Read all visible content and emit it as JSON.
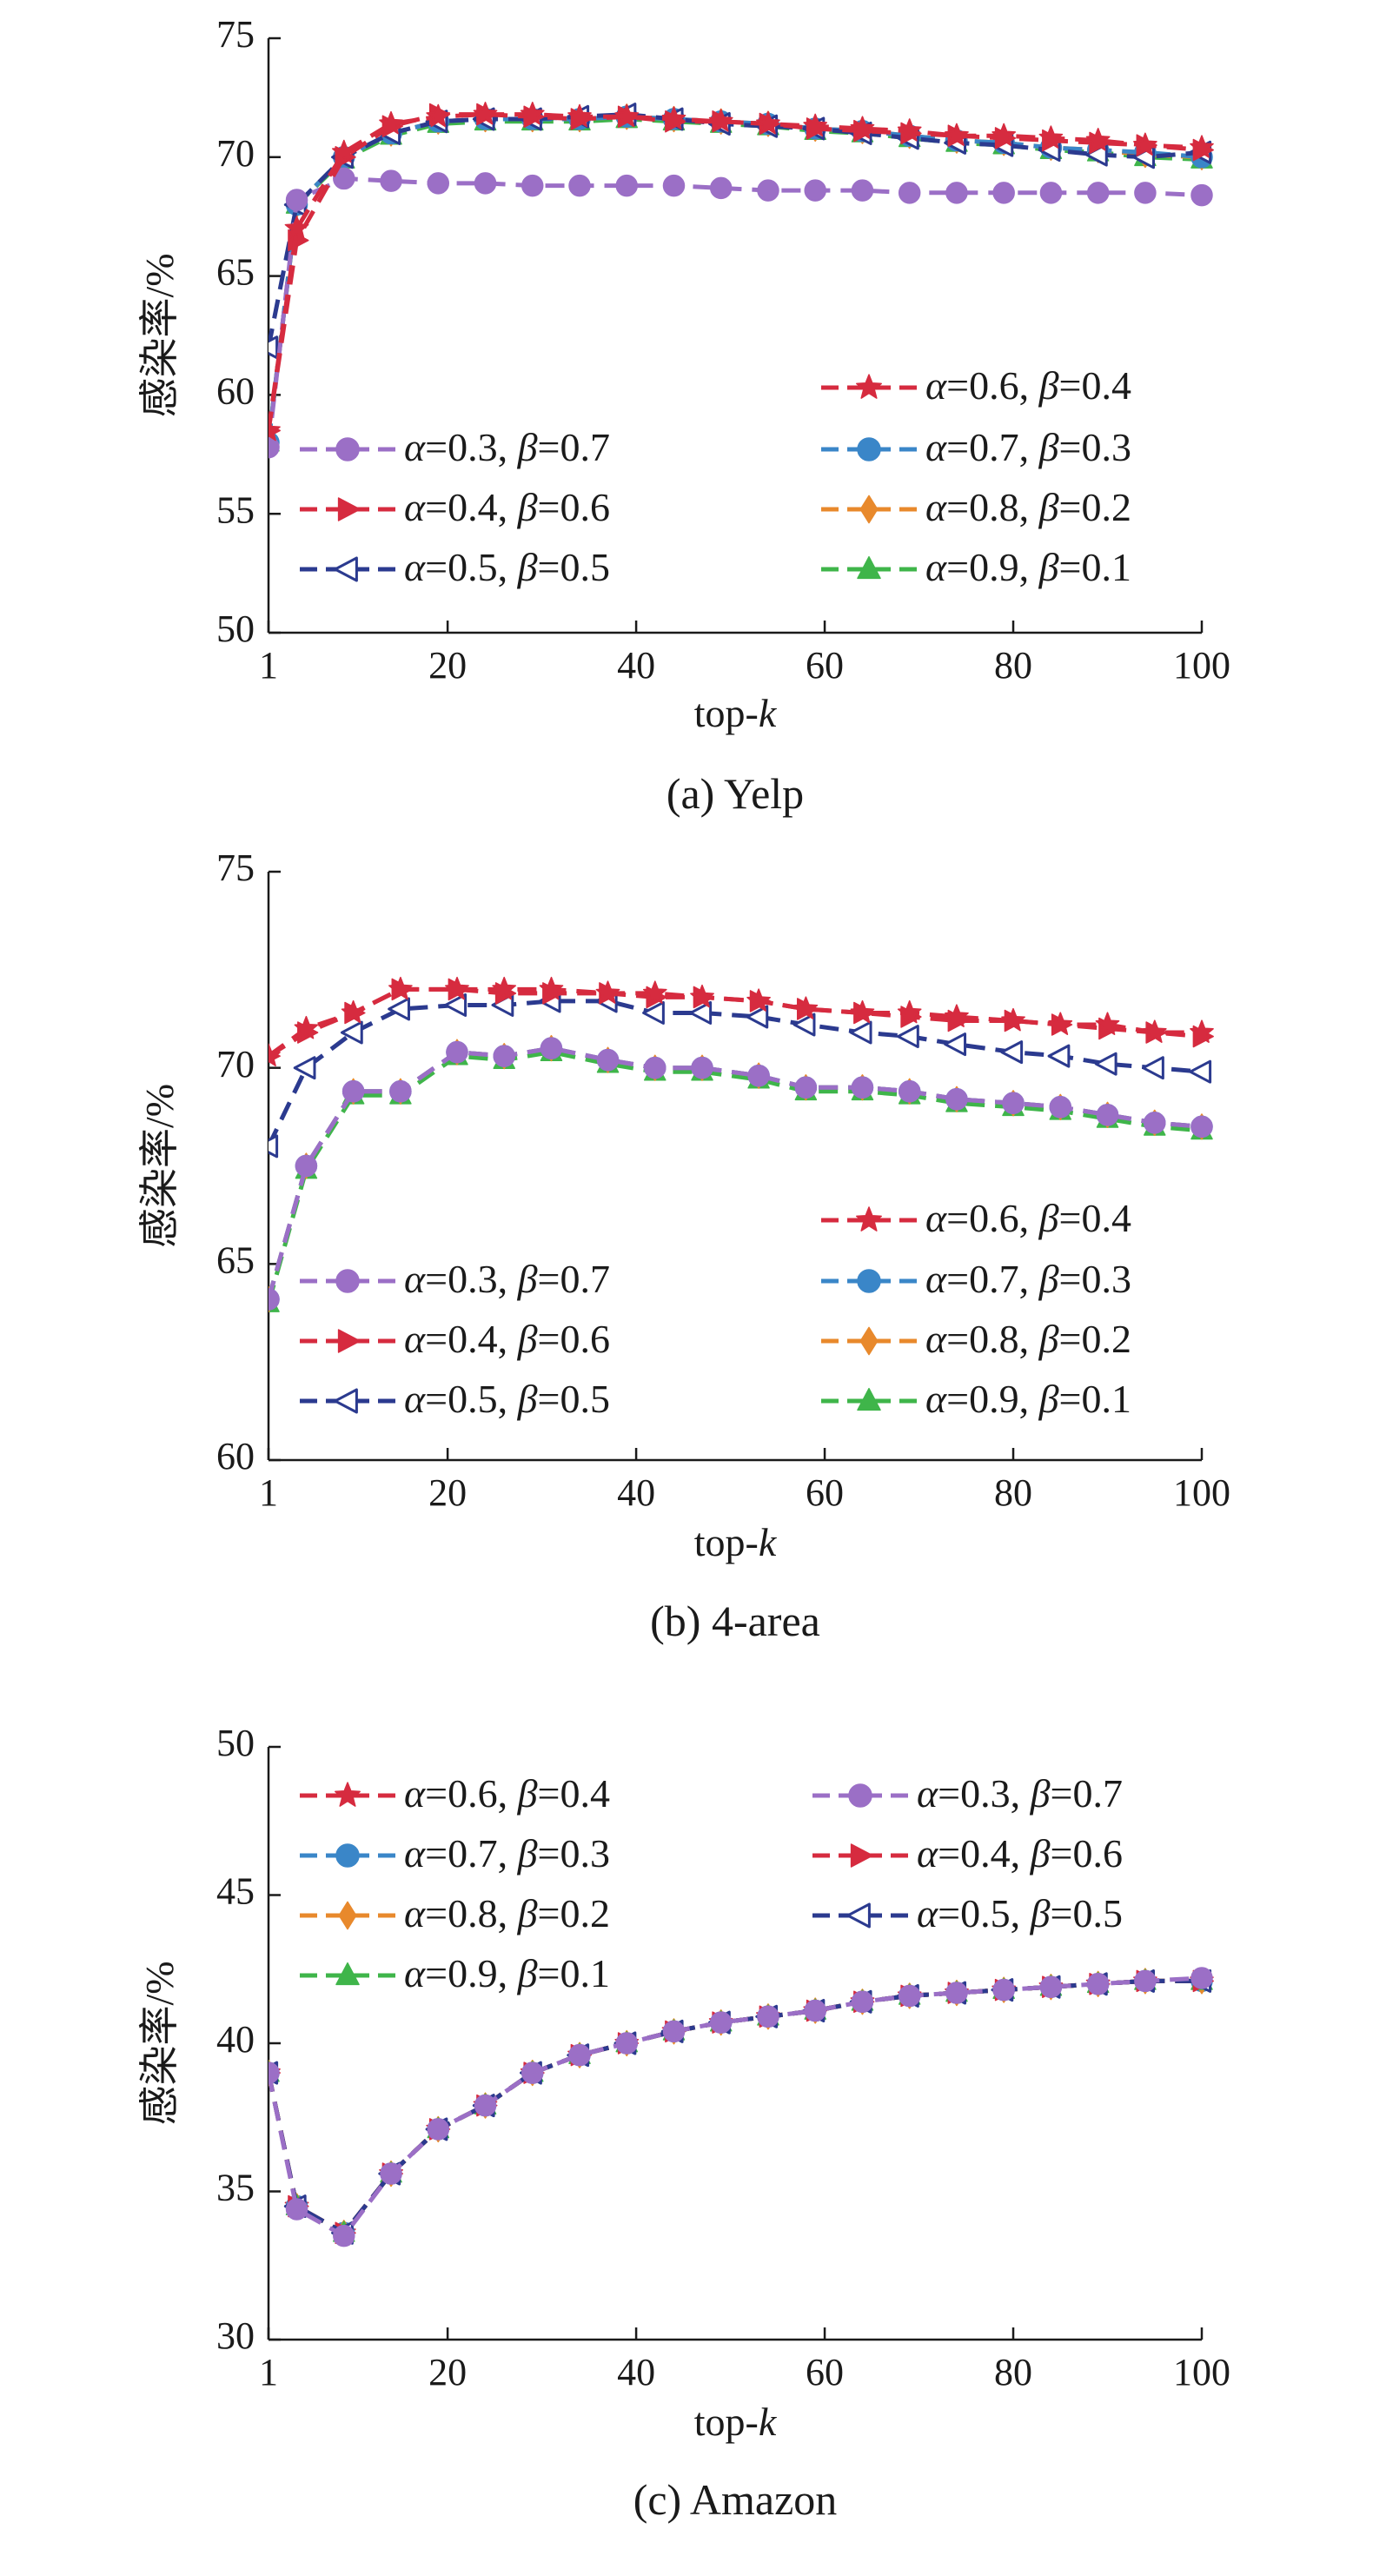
{
  "chart_data": [
    {
      "type": "line",
      "caption": "(a) Yelp",
      "xlabel": "top-k",
      "ylabel": "感染率/%",
      "xlim": [
        1,
        100
      ],
      "ylim": [
        50,
        75
      ],
      "xticks": [
        "1",
        "20",
        "40",
        "60",
        "80",
        "100"
      ],
      "yticks": [
        "50",
        "55",
        "60",
        "65",
        "70",
        "75"
      ],
      "legend": [
        {
          "key": "s3",
          "label": "α=0.3, β=0.7"
        },
        {
          "key": "s4",
          "label": "α=0.4, β=0.6"
        },
        {
          "key": "s5",
          "label": "α=0.5, β=0.5"
        },
        {
          "key": "s6",
          "label": "α=0.6, β=0.4"
        },
        {
          "key": "s7",
          "label": "α=0.7, β=0.3"
        },
        {
          "key": "s8",
          "label": "α=0.8, β=0.2"
        },
        {
          "key": "s9",
          "label": "α=0.9, β=0.1"
        }
      ],
      "x": [
        1,
        4,
        9,
        14,
        19,
        24,
        29,
        34,
        39,
        44,
        49,
        54,
        59,
        64,
        69,
        74,
        79,
        84,
        89,
        94,
        100
      ],
      "series": [
        {
          "key": "s9",
          "name": "α=0.9, β=0.1",
          "values": [
            58.0,
            68.0,
            69.9,
            70.9,
            71.4,
            71.5,
            71.5,
            71.5,
            71.6,
            71.5,
            71.4,
            71.3,
            71.1,
            71.0,
            70.8,
            70.6,
            70.5,
            70.3,
            70.2,
            70.0,
            69.9
          ]
        },
        {
          "key": "s8",
          "name": "α=0.8, β=0.2",
          "values": [
            58.0,
            68.0,
            70.0,
            71.0,
            71.5,
            71.6,
            71.6,
            71.6,
            71.7,
            71.6,
            71.5,
            71.4,
            71.2,
            71.1,
            70.9,
            70.7,
            70.6,
            70.4,
            70.3,
            70.1,
            70.0
          ]
        },
        {
          "key": "s7",
          "name": "α=0.7, β=0.3",
          "values": [
            58.0,
            68.0,
            70.0,
            71.0,
            71.5,
            71.6,
            71.6,
            71.6,
            71.7,
            71.6,
            71.5,
            71.4,
            71.2,
            71.1,
            70.9,
            70.7,
            70.6,
            70.4,
            70.3,
            70.2,
            70.0
          ]
        },
        {
          "key": "s5",
          "name": "α=0.5, β=0.5",
          "values": [
            62.0,
            68.0,
            70.0,
            71.0,
            71.5,
            71.6,
            71.6,
            71.7,
            71.8,
            71.6,
            71.4,
            71.3,
            71.2,
            71.0,
            70.8,
            70.6,
            70.5,
            70.3,
            70.1,
            70.0,
            70.2
          ]
        },
        {
          "key": "s3",
          "name": "α=0.3, β=0.7",
          "values": [
            57.8,
            68.2,
            69.1,
            69.0,
            68.9,
            68.9,
            68.8,
            68.8,
            68.8,
            68.8,
            68.7,
            68.6,
            68.6,
            68.6,
            68.5,
            68.5,
            68.5,
            68.5,
            68.5,
            68.5,
            68.4
          ]
        },
        {
          "key": "s4",
          "name": "α=0.4, β=0.6",
          "values": [
            58.5,
            66.5,
            70.0,
            71.3,
            71.8,
            71.8,
            71.7,
            71.6,
            71.7,
            71.5,
            71.5,
            71.4,
            71.2,
            71.1,
            71.0,
            70.9,
            70.8,
            70.7,
            70.6,
            70.5,
            70.3
          ]
        },
        {
          "key": "s6",
          "name": "α=0.6, β=0.4",
          "values": [
            58.5,
            67.0,
            70.2,
            71.4,
            71.7,
            71.8,
            71.8,
            71.7,
            71.7,
            71.6,
            71.5,
            71.4,
            71.3,
            71.2,
            71.1,
            70.9,
            70.9,
            70.8,
            70.7,
            70.5,
            70.4
          ]
        }
      ]
    },
    {
      "type": "line",
      "caption": "(b) 4-area",
      "xlabel": "top-k",
      "ylabel": "感染率/%",
      "xlim": [
        1,
        100
      ],
      "ylim": [
        60,
        75
      ],
      "xticks": [
        "1",
        "20",
        "40",
        "60",
        "80",
        "100"
      ],
      "yticks": [
        "60",
        "65",
        "70",
        "75"
      ],
      "legend": [
        {
          "key": "s3",
          "label": "α=0.3, β=0.7"
        },
        {
          "key": "s4",
          "label": "α=0.4, β=0.6"
        },
        {
          "key": "s5",
          "label": "α=0.5, β=0.5"
        },
        {
          "key": "s6",
          "label": "α=0.6, β=0.4"
        },
        {
          "key": "s7",
          "label": "α=0.7, β=0.3"
        },
        {
          "key": "s8",
          "label": "α=0.8, β=0.2"
        },
        {
          "key": "s9",
          "label": "α=0.9, β=0.1"
        }
      ],
      "x": [
        1,
        5,
        10,
        15,
        21,
        26,
        31,
        37,
        42,
        47,
        53,
        58,
        64,
        69,
        74,
        80,
        85,
        90,
        95,
        100
      ],
      "series": [
        {
          "key": "s9",
          "name": "α=0.9, β=0.1",
          "values": [
            64.0,
            67.4,
            69.3,
            69.3,
            70.3,
            70.2,
            70.4,
            70.1,
            69.9,
            69.9,
            69.7,
            69.4,
            69.4,
            69.3,
            69.1,
            69.0,
            68.9,
            68.7,
            68.5,
            68.4
          ]
        },
        {
          "key": "s8",
          "name": "α=0.8, β=0.2",
          "values": [
            64.1,
            67.5,
            69.4,
            69.4,
            70.4,
            70.3,
            70.5,
            70.2,
            70.0,
            70.0,
            69.8,
            69.5,
            69.5,
            69.4,
            69.2,
            69.1,
            69.0,
            68.8,
            68.6,
            68.5
          ]
        },
        {
          "key": "s7",
          "name": "α=0.7, β=0.3",
          "values": [
            64.1,
            67.5,
            69.4,
            69.4,
            70.4,
            70.3,
            70.5,
            70.2,
            70.0,
            70.0,
            69.8,
            69.5,
            69.5,
            69.4,
            69.2,
            69.1,
            69.0,
            68.8,
            68.6,
            68.5
          ]
        },
        {
          "key": "s3",
          "name": "α=0.3, β=0.7",
          "values": [
            64.1,
            67.5,
            69.4,
            69.4,
            70.4,
            70.3,
            70.5,
            70.2,
            70.0,
            70.0,
            69.8,
            69.5,
            69.5,
            69.4,
            69.2,
            69.1,
            69.0,
            68.8,
            68.6,
            68.5
          ]
        },
        {
          "key": "s5",
          "name": "α=0.5, β=0.5",
          "values": [
            68.0,
            70.0,
            70.9,
            71.5,
            71.6,
            71.6,
            71.7,
            71.7,
            71.4,
            71.4,
            71.3,
            71.1,
            70.9,
            70.8,
            70.6,
            70.4,
            70.3,
            70.1,
            70.0,
            69.9
          ]
        },
        {
          "key": "s4",
          "name": "α=0.4, β=0.6",
          "values": [
            70.3,
            70.9,
            71.4,
            72.0,
            72.0,
            71.9,
            71.9,
            71.9,
            71.8,
            71.8,
            71.7,
            71.5,
            71.4,
            71.3,
            71.2,
            71.2,
            71.1,
            71.0,
            70.9,
            70.8
          ]
        },
        {
          "key": "s6",
          "name": "α=0.6, β=0.4",
          "values": [
            70.3,
            71.0,
            71.4,
            72.0,
            72.0,
            72.0,
            72.0,
            71.9,
            71.9,
            71.8,
            71.7,
            71.5,
            71.4,
            71.4,
            71.3,
            71.2,
            71.1,
            71.1,
            70.9,
            70.9
          ]
        }
      ]
    },
    {
      "type": "line",
      "caption": "(c) Amazon",
      "xlabel": "top-k",
      "ylabel": "感染率/%",
      "xlim": [
        1,
        100
      ],
      "ylim": [
        30,
        50
      ],
      "xticks": [
        "1",
        "20",
        "40",
        "60",
        "80",
        "100"
      ],
      "yticks": [
        "30",
        "35",
        "40",
        "45",
        "50"
      ],
      "legend": [
        {
          "key": "s6",
          "label": "α=0.6, β=0.4"
        },
        {
          "key": "s7",
          "label": "α=0.7, β=0.3"
        },
        {
          "key": "s8",
          "label": "α=0.8, β=0.2"
        },
        {
          "key": "s9",
          "label": "α=0.9, β=0.1"
        },
        {
          "key": "s3",
          "label": "α=0.3, β=0.7"
        },
        {
          "key": "s4",
          "label": "α=0.4, β=0.6"
        },
        {
          "key": "s5",
          "label": "α=0.5, β=0.5"
        }
      ],
      "x": [
        1,
        4,
        9,
        14,
        19,
        24,
        29,
        34,
        39,
        44,
        49,
        54,
        59,
        64,
        69,
        74,
        79,
        84,
        89,
        94,
        100
      ],
      "series": [
        {
          "key": "s6",
          "name": "α=0.6, β=0.4",
          "values": [
            39.0,
            34.5,
            33.6,
            35.6,
            37.1,
            37.9,
            39.0,
            39.6,
            40.0,
            40.4,
            40.7,
            40.9,
            41.1,
            41.4,
            41.6,
            41.7,
            41.8,
            41.9,
            42.0,
            42.1,
            42.1
          ]
        },
        {
          "key": "s7",
          "name": "α=0.7, β=0.3",
          "values": [
            39.0,
            34.5,
            33.6,
            35.6,
            37.1,
            37.9,
            39.0,
            39.6,
            40.0,
            40.4,
            40.7,
            40.9,
            41.1,
            41.4,
            41.6,
            41.7,
            41.8,
            41.9,
            42.0,
            42.1,
            42.1
          ]
        },
        {
          "key": "s8",
          "name": "α=0.8, β=0.2",
          "values": [
            39.0,
            34.5,
            33.6,
            35.6,
            37.1,
            37.9,
            39.0,
            39.6,
            40.0,
            40.4,
            40.7,
            40.9,
            41.1,
            41.4,
            41.6,
            41.7,
            41.8,
            41.9,
            42.0,
            42.1,
            42.1
          ]
        },
        {
          "key": "s9",
          "name": "α=0.9, β=0.1",
          "values": [
            39.0,
            34.5,
            33.6,
            35.6,
            37.1,
            37.9,
            39.0,
            39.6,
            40.0,
            40.4,
            40.7,
            40.9,
            41.1,
            41.4,
            41.6,
            41.7,
            41.8,
            41.9,
            42.0,
            42.1,
            42.1
          ]
        },
        {
          "key": "s4",
          "name": "α=0.4, β=0.6",
          "values": [
            39.0,
            34.5,
            33.6,
            35.6,
            37.1,
            37.9,
            39.0,
            39.6,
            40.0,
            40.4,
            40.7,
            40.9,
            41.1,
            41.4,
            41.6,
            41.7,
            41.8,
            41.9,
            42.0,
            42.1,
            42.1
          ]
        },
        {
          "key": "s5",
          "name": "α=0.5, β=0.5",
          "values": [
            39.0,
            34.5,
            33.6,
            35.6,
            37.1,
            37.9,
            39.0,
            39.6,
            40.0,
            40.4,
            40.7,
            40.9,
            41.1,
            41.4,
            41.6,
            41.7,
            41.8,
            41.9,
            42.0,
            42.1,
            42.1
          ]
        },
        {
          "key": "s3",
          "name": "α=0.3, β=0.7",
          "values": [
            39.0,
            34.4,
            33.5,
            35.6,
            37.1,
            37.9,
            39.0,
            39.6,
            40.0,
            40.4,
            40.7,
            40.9,
            41.1,
            41.4,
            41.6,
            41.7,
            41.8,
            41.9,
            42.0,
            42.1,
            42.2
          ]
        }
      ]
    }
  ],
  "series_styles": {
    "s3": {
      "color": "#9b6fc6",
      "marker": "circle"
    },
    "s4": {
      "color": "#d62b3f",
      "marker": "triangle-right"
    },
    "s5": {
      "color": "#2b3a8f",
      "marker": "triangle-left-open"
    },
    "s6": {
      "color": "#d62b3f",
      "marker": "star"
    },
    "s7": {
      "color": "#3a86c8",
      "marker": "circle"
    },
    "s8": {
      "color": "#e8892c",
      "marker": "diamond"
    },
    "s9": {
      "color": "#3fb54a",
      "marker": "triangle-up"
    }
  }
}
